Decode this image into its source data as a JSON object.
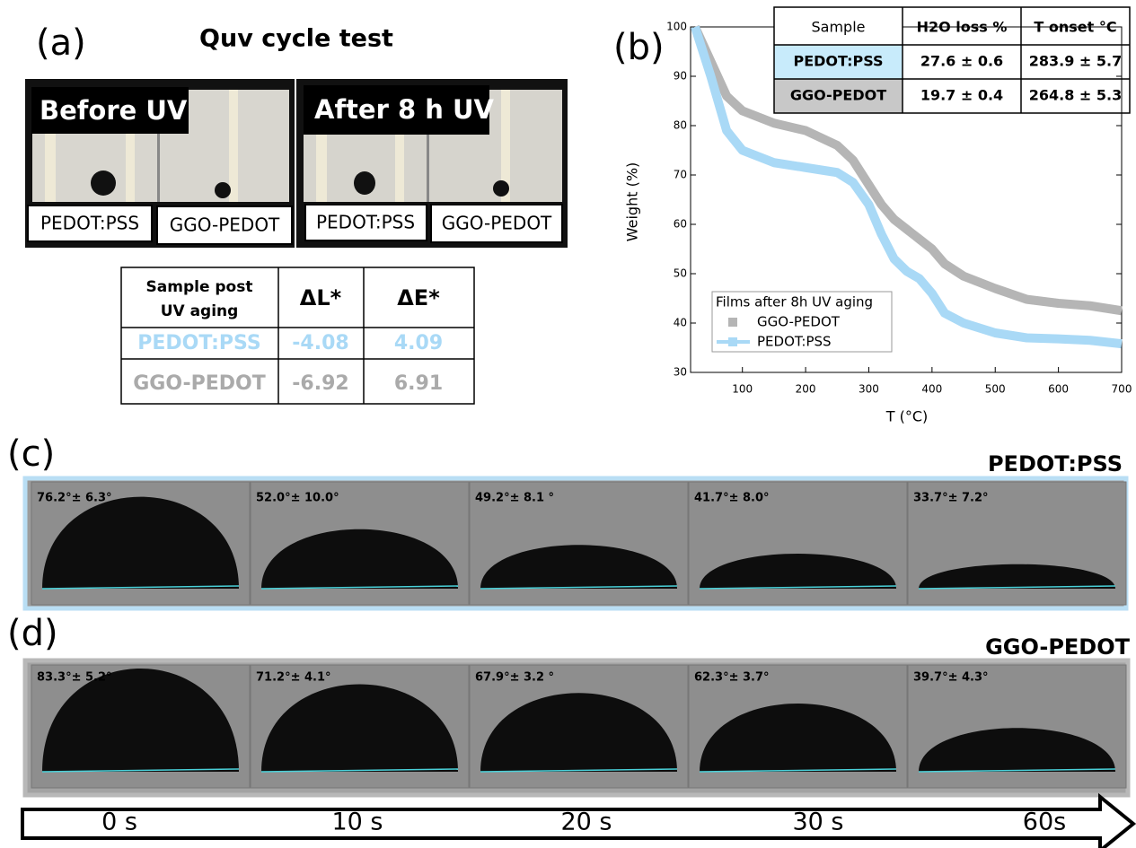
{
  "panel_a": {
    "label": "(a)",
    "title": "Quv cycle test",
    "photos": [
      {
        "caption": "Before UV",
        "samples": [
          "PEDOT:PSS",
          "GGO-PEDOT"
        ]
      },
      {
        "caption": "After 8 h UV",
        "samples": [
          "PEDOT:PSS",
          "GGO-PEDOT"
        ]
      }
    ],
    "table": {
      "header": {
        "sample": [
          "Sample post",
          "UV aging"
        ],
        "dL": "ΔL*",
        "dE": "ΔE*"
      },
      "rows": [
        [
          "PEDOT:PSS",
          -4.08,
          4.09
        ],
        [
          "GGO-PEDOT",
          -6.92,
          6.91
        ]
      ]
    }
  },
  "chart_data": {
    "type": "line",
    "label": "(b)",
    "x_label": "T (°C)",
    "y_label": "Weight (%)",
    "legend_title": "Films after 8h UV aging",
    "x": [
      25,
      50,
      75,
      100,
      150,
      200,
      250,
      275,
      300,
      320,
      340,
      360,
      380,
      400,
      420,
      450,
      500,
      550,
      600,
      650,
      700
    ],
    "series": [
      {
        "name": "GGO-PEDOT",
        "color": "#b5b5b5",
        "values": [
          100,
          93,
          86,
          83,
          80.5,
          79,
          76,
          73,
          68,
          64,
          61,
          59,
          57,
          55,
          52,
          49.5,
          47,
          44.8,
          44,
          43.5,
          42.5
        ]
      },
      {
        "name": "PEDOT:PSS",
        "color": "#a9d9f6",
        "values": [
          100,
          90,
          79,
          75,
          72.5,
          71.5,
          70.5,
          68.5,
          64,
          58,
          53,
          50.5,
          49,
          46,
          42,
          40,
          38,
          37,
          36.8,
          36.5,
          35.8
        ]
      }
    ],
    "xlim": [
      18,
      700
    ],
    "ylim": [
      30,
      100
    ],
    "xticks": [
      100,
      200,
      300,
      400,
      500,
      600,
      700
    ],
    "yticks": [
      30,
      40,
      50,
      60,
      70,
      80,
      90,
      100
    ],
    "inset_table": {
      "header": [
        "Sample",
        "H2O loss %",
        "T onset °C"
      ],
      "rows": [
        [
          "PEDOT:PSS",
          "27.6 ± 0.6",
          "283.9 ± 5.7"
        ],
        [
          "GGO-PEDOT",
          "19.7 ± 0.4",
          "264.8 ± 5.3"
        ]
      ]
    }
  },
  "panel_c": {
    "label": "(c)",
    "sample": "PEDOT:PSS",
    "angles": [
      "76.2°± 6.3°",
      "52.0°± 10.0°",
      "49.2°± 8.1 °",
      "41.7°± 8.0°",
      "33.7°± 7.2°"
    ]
  },
  "panel_d": {
    "label": "(d)",
    "sample": "GGO-PEDOT",
    "angles": [
      "83.3°± 5.2°",
      "71.2°± 4.1°",
      "67.9°± 3.2 °",
      "62.3°± 3.7°",
      "39.7°± 4.3°"
    ]
  },
  "timeline": [
    "0 s",
    "10 s",
    "20 s",
    "30 s",
    "60s"
  ]
}
